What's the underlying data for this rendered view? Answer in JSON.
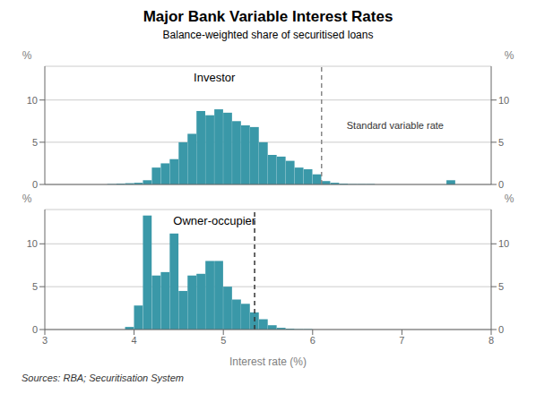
{
  "chart_data": [
    {
      "type": "bar",
      "title": "Major Bank Variable Interest Rates",
      "subtitle": "Balance-weighted share of securitised loans",
      "label": "Investor",
      "ylabel": "%",
      "y2label": "%",
      "color": "#3a98a8",
      "xlim": [
        3,
        8
      ],
      "ylim": [
        0,
        14
      ],
      "yticks": [
        0,
        5,
        10
      ],
      "y2lim": [
        0,
        14
      ],
      "y2ticks": [
        0,
        5,
        10
      ],
      "grid": true,
      "tick_labels": "y",
      "vlines": [
        {
          "x": 6.1,
          "color": "#888888",
          "line_style": "dashed",
          "label": "Standard variable rate"
        }
      ],
      "x": [
        3.0,
        3.1,
        3.2,
        3.3,
        3.4,
        3.5,
        3.6,
        3.7,
        3.8,
        3.9,
        4.0,
        4.1,
        4.2,
        4.3,
        4.4,
        4.5,
        4.6,
        4.7,
        4.8,
        4.9,
        5.0,
        5.1,
        5.2,
        5.3,
        5.4,
        5.5,
        5.6,
        5.7,
        5.8,
        5.9,
        6.0,
        6.1,
        6.2,
        6.3,
        6.4,
        6.5,
        6.6,
        6.7,
        6.8,
        6.9,
        7.0,
        7.1,
        7.2,
        7.3,
        7.4,
        7.5,
        7.6,
        7.7,
        7.8,
        7.9
      ],
      "values": [
        0.0,
        0.0,
        0.0,
        0.0,
        0.0,
        0.0,
        0.0,
        0.05,
        0.1,
        0.15,
        0.2,
        0.5,
        2.0,
        2.5,
        3.0,
        5.0,
        6.0,
        8.7,
        8.2,
        8.9,
        8.5,
        7.5,
        7.0,
        6.8,
        5.0,
        3.5,
        3.3,
        2.8,
        2.0,
        1.8,
        1.2,
        0.4,
        0.2,
        0.1,
        0.05,
        0.05,
        0.05,
        0.0,
        0.0,
        0.0,
        0.0,
        0.0,
        0.0,
        0.0,
        0.0,
        0.5,
        0.0,
        0.0,
        0.0,
        0.0
      ]
    },
    {
      "type": "bar",
      "label": "Owner-occupier",
      "xlabel": "Interest rate (%)",
      "ylabel": "%",
      "y2label": "%",
      "source": "Sources: RBA; Securitisation System",
      "color": "#3a98a8",
      "xlim": [
        3,
        8
      ],
      "xticks": [
        3,
        4,
        5,
        6,
        7,
        8
      ],
      "ylim": [
        0,
        14
      ],
      "yticks": [
        0,
        5,
        10
      ],
      "y2lim": [
        0,
        14
      ],
      "y2ticks": [
        0,
        5,
        10
      ],
      "grid": true,
      "vlines": [
        {
          "x": 5.35,
          "color": "#333333",
          "line_style": "dashed"
        }
      ],
      "x": [
        3.0,
        3.1,
        3.2,
        3.3,
        3.4,
        3.5,
        3.6,
        3.7,
        3.8,
        3.9,
        4.0,
        4.1,
        4.2,
        4.3,
        4.4,
        4.5,
        4.6,
        4.7,
        4.8,
        4.9,
        5.0,
        5.1,
        5.2,
        5.3,
        5.4,
        5.5,
        5.6,
        5.7,
        5.8,
        5.9,
        6.0,
        6.1,
        6.2,
        6.3,
        6.4,
        6.5,
        6.6,
        6.7,
        6.8,
        6.9,
        7.0,
        7.1,
        7.2,
        7.3,
        7.4,
        7.5,
        7.6,
        7.7,
        7.8,
        7.9
      ],
      "values": [
        0.0,
        0.0,
        0.0,
        0.0,
        0.0,
        0.0,
        0.0,
        0.0,
        0.0,
        0.3,
        2.8,
        13.3,
        6.3,
        6.7,
        11.2,
        4.5,
        6.3,
        6.5,
        8.0,
        8.0,
        5.0,
        3.5,
        3.0,
        2.0,
        1.2,
        0.5,
        0.2,
        0.1,
        0.05,
        0.05,
        0.0,
        0.0,
        0.0,
        0.0,
        0.0,
        0.0,
        0.0,
        0.0,
        0.0,
        0.0,
        0.0,
        0.0,
        0.0,
        0.0,
        0.0,
        0.0,
        0.0,
        0.0,
        0.0,
        0.0
      ]
    }
  ]
}
